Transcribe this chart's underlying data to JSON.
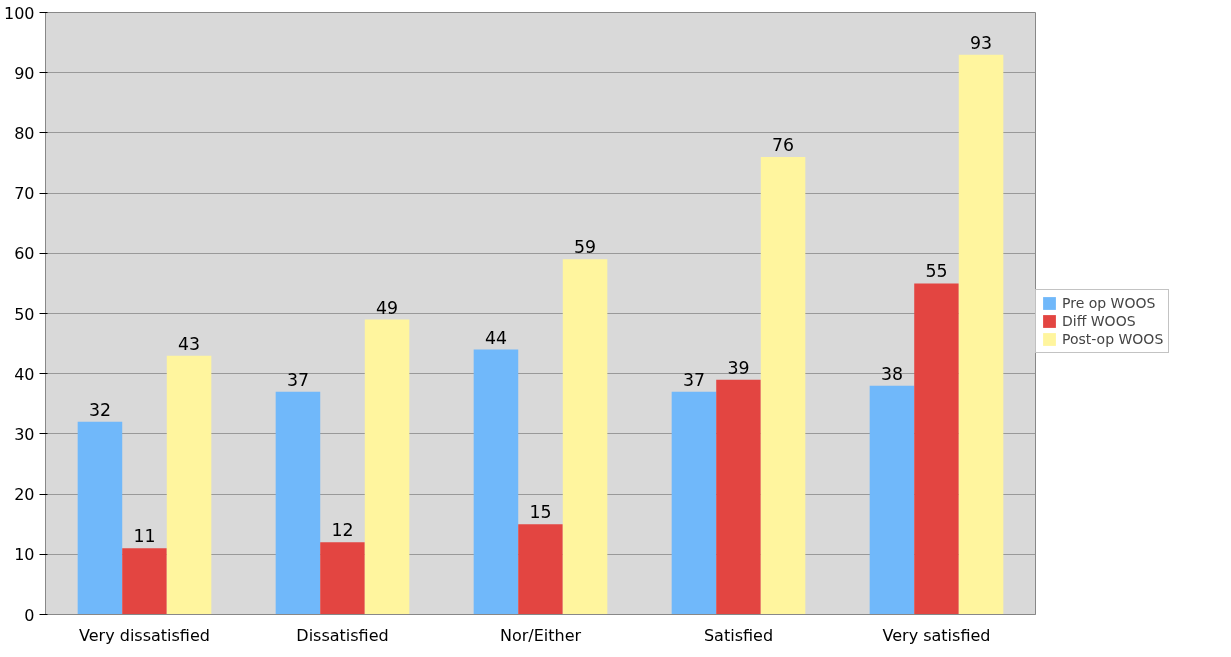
{
  "chart_data": {
    "type": "bar",
    "categories": [
      "Very dissatisfied",
      "Dissatisfied",
      "Nor/Either",
      "Satisfied",
      "Very satisfied"
    ],
    "series": [
      {
        "name": "Pre op WOOS",
        "color": "#70b8fa",
        "values": [
          32,
          37,
          44,
          37,
          38
        ]
      },
      {
        "name": "Diff WOOS",
        "color": "#e34541",
        "values": [
          11,
          12,
          15,
          39,
          55
        ]
      },
      {
        "name": "Post-op WOOS",
        "color": "#fff59e",
        "values": [
          43,
          49,
          59,
          76,
          93
        ]
      }
    ],
    "ylim": [
      0,
      100
    ],
    "yticks": [
      0,
      10,
      20,
      30,
      40,
      50,
      60,
      70,
      80,
      90,
      100
    ],
    "grid": "y",
    "legend": "right",
    "data_labels": true
  }
}
